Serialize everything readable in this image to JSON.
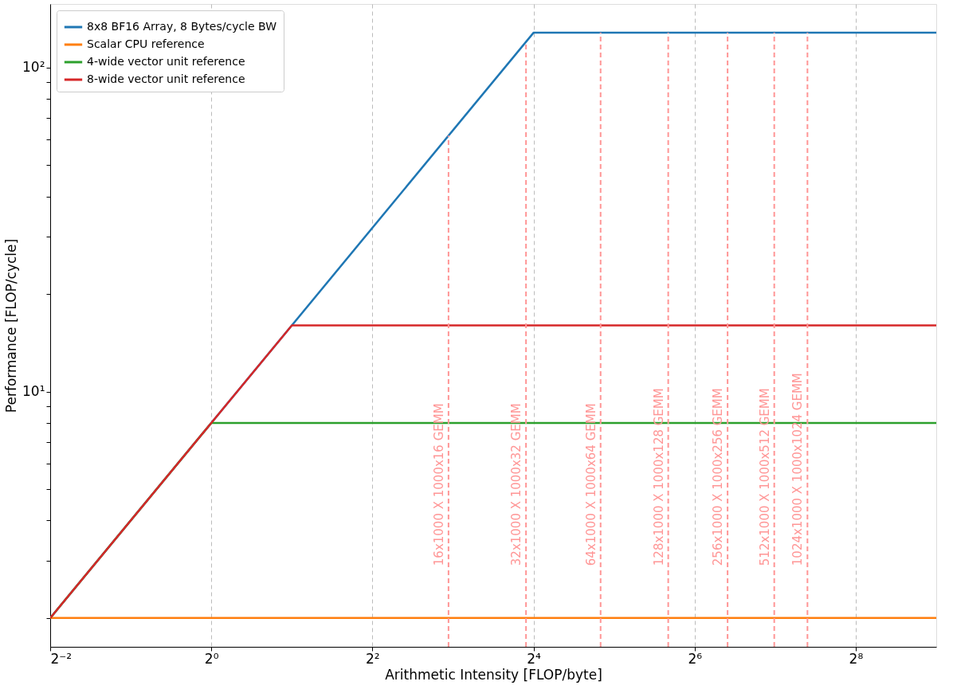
{
  "chart_data": {
    "type": "line",
    "xlabel": "Arithmetic Intensity [FLOP/byte]",
    "ylabel": "Performance [FLOP/cycle]",
    "log": "xy",
    "grid": "x",
    "legend": "top left",
    "line_style": "solid",
    "marker": "none",
    "xlim": [
      0.25,
      512
    ],
    "ylim": [
      1.63,
      157
    ],
    "xticks": [
      {
        "value": 0.25,
        "label": "2⁻²"
      },
      {
        "value": 1,
        "label": "2⁰"
      },
      {
        "value": 4,
        "label": "2²"
      },
      {
        "value": 16,
        "label": "2⁴"
      },
      {
        "value": 64,
        "label": "2⁶"
      },
      {
        "value": 256,
        "label": "2⁸"
      }
    ],
    "yticks": [
      {
        "value": 2,
        "label": null
      },
      {
        "value": 3,
        "label": null
      },
      {
        "value": 4,
        "label": null
      },
      {
        "value": 5,
        "label": null
      },
      {
        "value": 6,
        "label": null
      },
      {
        "value": 7,
        "label": null
      },
      {
        "value": 8,
        "label": null
      },
      {
        "value": 9,
        "label": null
      },
      {
        "value": 10,
        "label": "10¹"
      },
      {
        "value": 20,
        "label": null
      },
      {
        "value": 30,
        "label": null
      },
      {
        "value": 40,
        "label": null
      },
      {
        "value": 50,
        "label": null
      },
      {
        "value": 60,
        "label": null
      },
      {
        "value": 70,
        "label": null
      },
      {
        "value": 80,
        "label": null
      },
      {
        "value": 90,
        "label": null
      },
      {
        "value": 100,
        "label": "10²"
      }
    ],
    "series": [
      {
        "name": "8x8 BF16 Array, 8 Bytes/cycle BW",
        "color": "#1f77b4",
        "x": [
          0.25,
          16,
          512
        ],
        "values": [
          2,
          128,
          128
        ]
      },
      {
        "name": "Scalar CPU reference",
        "color": "#ff7f0e",
        "x": [
          0.25,
          512
        ],
        "values": [
          2,
          2
        ]
      },
      {
        "name": "4-wide vector unit reference",
        "color": "#2ca02c",
        "x": [
          0.25,
          1,
          512
        ],
        "values": [
          2,
          8,
          8
        ]
      },
      {
        "name": "8-wide vector unit reference",
        "color": "#d62728",
        "x": [
          0.25,
          2,
          512
        ],
        "values": [
          2,
          16,
          16
        ]
      }
    ],
    "ref_lines": [
      {
        "axis": "x",
        "value": 7.7,
        "label": "16x1000 X 1000x16 GEMM",
        "color": "#ff9696",
        "line_style": "dashed"
      },
      {
        "axis": "x",
        "value": 15,
        "label": "32x1000 X 1000x32 GEMM",
        "color": "#ff9696",
        "line_style": "dashed"
      },
      {
        "axis": "x",
        "value": 28.5,
        "label": "64x1000 X 1000x64 GEMM",
        "color": "#ff9696",
        "line_style": "dashed"
      },
      {
        "axis": "x",
        "value": 51,
        "label": "128x1000 X 1000x128 GEMM",
        "color": "#ff9696",
        "line_style": "dashed"
      },
      {
        "axis": "x",
        "value": 85,
        "label": "256x1000 X 1000x256 GEMM",
        "color": "#ff9696",
        "line_style": "dashed"
      },
      {
        "axis": "x",
        "value": 127,
        "label": "512x1000 X 1000x512 GEMM",
        "color": "#ff9696",
        "line_style": "dashed"
      },
      {
        "axis": "x",
        "value": 169,
        "label": "1024x1000 X 1000x1024 GEMM",
        "color": "#ff9696",
        "line_style": "dashed"
      }
    ]
  }
}
